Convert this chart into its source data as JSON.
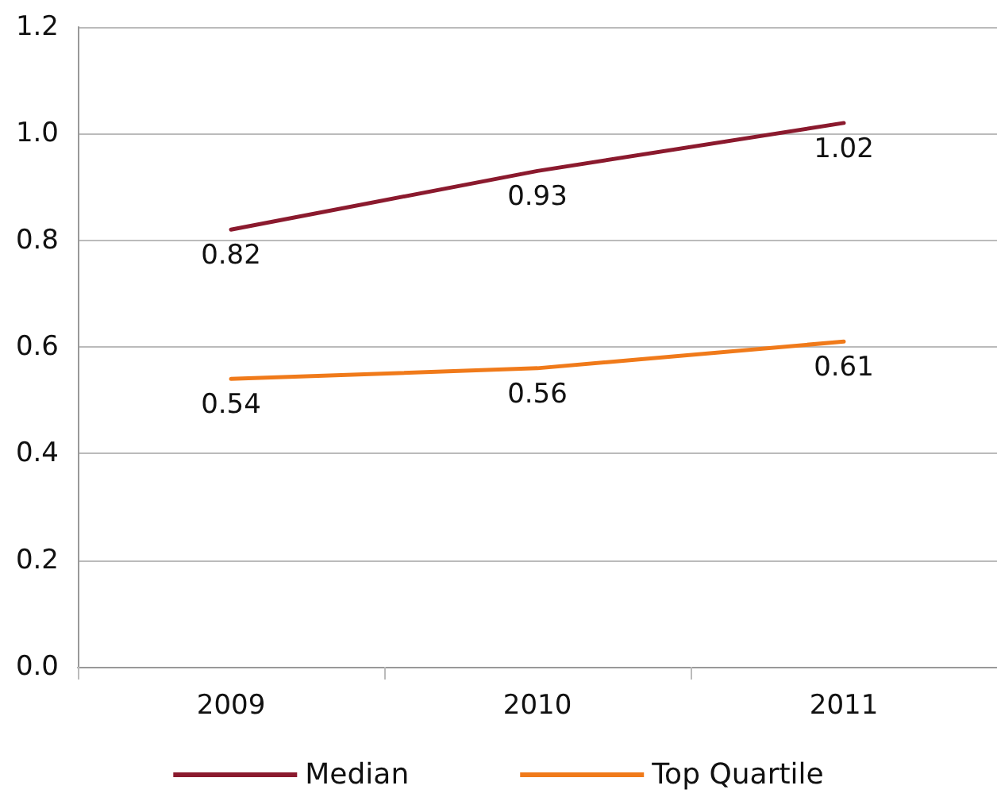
{
  "chart_data": {
    "type": "line",
    "categories": [
      "2009",
      "2010",
      "2011"
    ],
    "series": [
      {
        "name": "Median",
        "color": "#8b1a2e",
        "values": [
          0.82,
          0.93,
          1.02
        ]
      },
      {
        "name": "Top Quartile",
        "color": "#f07a1a",
        "values": [
          0.54,
          0.56,
          0.61
        ]
      }
    ],
    "ylim": [
      0,
      1.2
    ],
    "yticks": [
      {
        "value": 0,
        "label": "0.0"
      },
      {
        "value": 0.2,
        "label": "0.2"
      },
      {
        "value": 0.4,
        "label": "0.4"
      },
      {
        "value": 0.6,
        "label": "0.6"
      },
      {
        "value": 0.8,
        "label": "0.8"
      },
      {
        "value": 1,
        "label": "1.0"
      },
      {
        "value": 1.2,
        "label": "1.2"
      }
    ],
    "grid": "y",
    "legend": "bottom",
    "data_labels": true,
    "marker": "none",
    "line_style": "solid"
  }
}
